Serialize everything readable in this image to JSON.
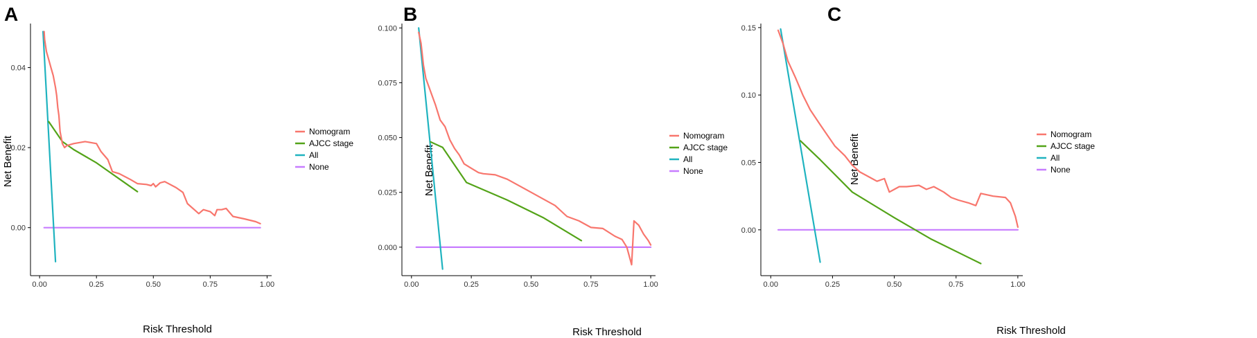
{
  "colors": {
    "Nomogram": "#f8766d",
    "AJCC stage": "#53a318",
    "All": "#1fb3bf",
    "None": "#c77cff"
  },
  "chart_data": [
    {
      "type": "line",
      "panel_label": "A",
      "xlabel": "Risk Threshold",
      "ylabel": "Net Benefit",
      "xlim": [
        -0.04,
        1.02
      ],
      "ylim": [
        -0.012,
        0.051
      ],
      "xticks": [
        0.0,
        0.25,
        0.5,
        0.75,
        1.0
      ],
      "xtick_labels": [
        "0.00",
        "0.25",
        "0.50",
        "0.75",
        "1.00"
      ],
      "yticks": [
        0.0,
        0.02,
        0.04
      ],
      "ytick_labels": [
        "0.00",
        "0.02",
        "0.04"
      ],
      "legend": [
        "Nomogram",
        "AJCC stage",
        "All",
        "None"
      ],
      "legend_position": "right",
      "series": [
        {
          "name": "Nomogram",
          "x": [
            0.02,
            0.022,
            0.03,
            0.04,
            0.05,
            0.06,
            0.07,
            0.075,
            0.08,
            0.085,
            0.09,
            0.1,
            0.11,
            0.12,
            0.15,
            0.2,
            0.25,
            0.27,
            0.3,
            0.32,
            0.35,
            0.4,
            0.43,
            0.47,
            0.49,
            0.5,
            0.51,
            0.53,
            0.55,
            0.6,
            0.63,
            0.65,
            0.7,
            0.72,
            0.75,
            0.77,
            0.78,
            0.8,
            0.82,
            0.85,
            0.9,
            0.95,
            0.97
          ],
          "y": [
            0.049,
            0.047,
            0.044,
            0.042,
            0.04,
            0.038,
            0.035,
            0.033,
            0.03,
            0.028,
            0.024,
            0.021,
            0.02,
            0.0205,
            0.021,
            0.0215,
            0.021,
            0.019,
            0.017,
            0.014,
            0.0135,
            0.012,
            0.011,
            0.0108,
            0.0105,
            0.011,
            0.0102,
            0.0112,
            0.0115,
            0.01,
            0.0088,
            0.006,
            0.0035,
            0.0045,
            0.004,
            0.003,
            0.0045,
            0.0045,
            0.0048,
            0.0028,
            0.0022,
            0.0015,
            0.001
          ]
        },
        {
          "name": "AJCC stage",
          "x": [
            0.04,
            0.1,
            0.15,
            0.25,
            0.35,
            0.43
          ],
          "y": [
            0.0265,
            0.0215,
            0.0195,
            0.0162,
            0.0122,
            0.009
          ]
        },
        {
          "name": "All",
          "x": [
            0.015,
            0.07
          ],
          "y": [
            0.049,
            -0.0085
          ]
        },
        {
          "name": "None",
          "x": [
            0.02,
            0.97
          ],
          "y": [
            0.0,
            0.0
          ]
        }
      ]
    },
    {
      "type": "line",
      "panel_label": "B",
      "xlabel": "Risk Threshold",
      "ylabel": "Net Benefit",
      "xlim": [
        -0.04,
        1.02
      ],
      "ylim": [
        -0.013,
        0.102
      ],
      "xticks": [
        0.0,
        0.25,
        0.5,
        0.75,
        1.0
      ],
      "xtick_labels": [
        "0.00",
        "0.25",
        "0.50",
        "0.75",
        "1.00"
      ],
      "yticks": [
        0.0,
        0.025,
        0.05,
        0.075,
        0.1
      ],
      "ytick_labels": [
        "0.000",
        "0.025",
        "0.050",
        "0.075",
        "0.100"
      ],
      "legend": [
        "Nomogram",
        "AJCC stage",
        "All",
        "None"
      ],
      "legend_position": "right",
      "series": [
        {
          "name": "Nomogram",
          "x": [
            0.03,
            0.04,
            0.05,
            0.06,
            0.08,
            0.1,
            0.12,
            0.14,
            0.16,
            0.18,
            0.2,
            0.22,
            0.25,
            0.28,
            0.3,
            0.35,
            0.4,
            0.45,
            0.5,
            0.55,
            0.6,
            0.65,
            0.7,
            0.75,
            0.8,
            0.85,
            0.88,
            0.9,
            0.92,
            0.93,
            0.95,
            0.97,
            0.99,
            1.0
          ],
          "y": [
            0.098,
            0.093,
            0.083,
            0.077,
            0.071,
            0.065,
            0.058,
            0.055,
            0.049,
            0.045,
            0.042,
            0.038,
            0.036,
            0.034,
            0.0335,
            0.033,
            0.031,
            0.028,
            0.025,
            0.022,
            0.019,
            0.014,
            0.012,
            0.009,
            0.0085,
            0.005,
            0.0035,
            0.0,
            -0.008,
            0.012,
            0.01,
            0.006,
            0.003,
            0.001
          ]
        },
        {
          "name": "AJCC stage",
          "x": [
            0.08,
            0.13,
            0.23,
            0.4,
            0.55,
            0.71
          ],
          "y": [
            0.048,
            0.0455,
            0.0295,
            0.0215,
            0.0135,
            0.003
          ]
        },
        {
          "name": "All",
          "x": [
            0.03,
            0.13
          ],
          "y": [
            0.1,
            -0.01
          ]
        },
        {
          "name": "None",
          "x": [
            0.02,
            1.0
          ],
          "y": [
            0.0,
            0.0
          ]
        }
      ]
    },
    {
      "type": "line",
      "panel_label": "C",
      "xlabel": "Risk Threshold",
      "ylabel": "Net Benefit",
      "xlim": [
        -0.04,
        1.02
      ],
      "ylim": [
        -0.034,
        0.153
      ],
      "xticks": [
        0.0,
        0.25,
        0.5,
        0.75,
        1.0
      ],
      "xtick_labels": [
        "0.00",
        "0.25",
        "0.50",
        "0.75",
        "1.00"
      ],
      "yticks": [
        0.0,
        0.05,
        0.1,
        0.15
      ],
      "ytick_labels": [
        "0.00",
        "0.05",
        "0.10",
        "0.15"
      ],
      "legend": [
        "Nomogram",
        "AJCC stage",
        "All",
        "None"
      ],
      "legend_position": "right",
      "series": [
        {
          "name": "Nomogram",
          "x": [
            0.03,
            0.05,
            0.07,
            0.1,
            0.13,
            0.16,
            0.2,
            0.23,
            0.26,
            0.3,
            0.33,
            0.36,
            0.4,
            0.43,
            0.46,
            0.48,
            0.5,
            0.52,
            0.55,
            0.6,
            0.63,
            0.66,
            0.7,
            0.73,
            0.76,
            0.8,
            0.83,
            0.85,
            0.9,
            0.95,
            0.97,
            0.99,
            1.0
          ],
          "y": [
            0.148,
            0.138,
            0.125,
            0.113,
            0.1,
            0.089,
            0.078,
            0.07,
            0.062,
            0.055,
            0.048,
            0.043,
            0.039,
            0.036,
            0.038,
            0.028,
            0.03,
            0.032,
            0.032,
            0.033,
            0.03,
            0.032,
            0.028,
            0.024,
            0.022,
            0.02,
            0.018,
            0.027,
            0.025,
            0.024,
            0.02,
            0.01,
            0.002
          ]
        },
        {
          "name": "AJCC stage",
          "x": [
            0.12,
            0.2,
            0.33,
            0.5,
            0.65,
            0.85
          ],
          "y": [
            0.066,
            0.052,
            0.028,
            0.009,
            -0.007,
            -0.025
          ]
        },
        {
          "name": "All",
          "x": [
            0.04,
            0.2
          ],
          "y": [
            0.149,
            -0.024
          ]
        },
        {
          "name": "None",
          "x": [
            0.03,
            1.0
          ],
          "y": [
            0.0,
            0.0
          ]
        }
      ]
    }
  ]
}
